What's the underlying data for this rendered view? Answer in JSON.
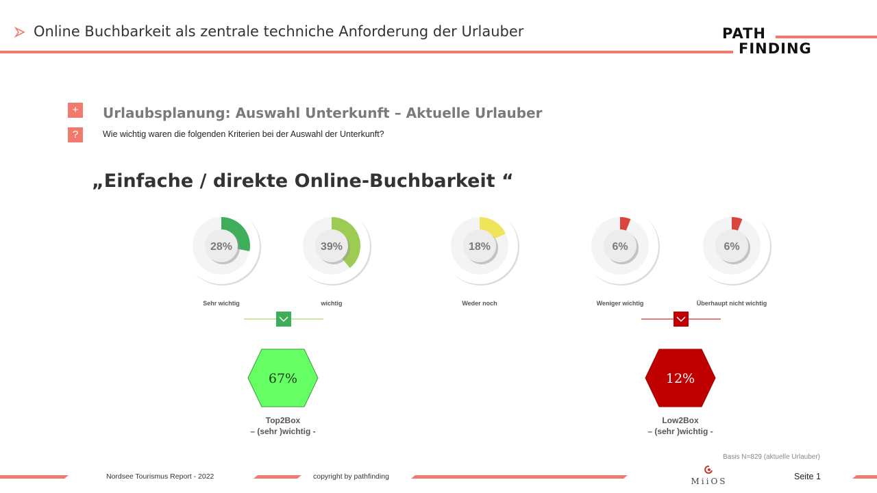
{
  "header": {
    "title": "Online Buchbarkeit als zentrale techniche Anforderung der Urlauber",
    "logo_line1": "PATH",
    "logo_line2": "FINDING"
  },
  "section": {
    "plus_icon": "+",
    "question_icon": "?",
    "subtitle": "Urlaubsplanung:  Auswahl Unterkunft  – Aktuelle Urlauber",
    "question": "Wie wichtig waren die folgenden Kriterien bei der Auswahl der Unterkunft?"
  },
  "chart_data": {
    "type": "pie",
    "title": "„Einfache / direkte Online-Buchbarkeit “",
    "categories": [
      "Sehr wichtig",
      "wichtig",
      "Weder noch",
      "Weniger wichtig",
      "Überhaupt nicht wichtig"
    ],
    "values": [
      28,
      39,
      18,
      6,
      6
    ],
    "value_labels": [
      "28%",
      "39%",
      "18%",
      "6%",
      "6%"
    ],
    "colors": [
      "#3fae5a",
      "#9ccc52",
      "#efe45a",
      "#d9463e",
      "#d9463e"
    ],
    "summary": [
      {
        "name": "Top2Box",
        "sublabel": "– (sehr )wichtig -",
        "value": 67,
        "value_label": "67%",
        "color": "#66ff66"
      },
      {
        "name": "Low2Box",
        "sublabel": "– (sehr )wichtig -",
        "value": 12,
        "value_label": "12%",
        "color": "#c00000"
      }
    ]
  },
  "footer": {
    "report": "Nordsee Tourismus Report - 2022",
    "copyright": "copyright by pathfinding",
    "basis": "Basis N=829 (aktuelle Urlauber)",
    "page": "Seite 1",
    "brand": "MiiOS"
  }
}
